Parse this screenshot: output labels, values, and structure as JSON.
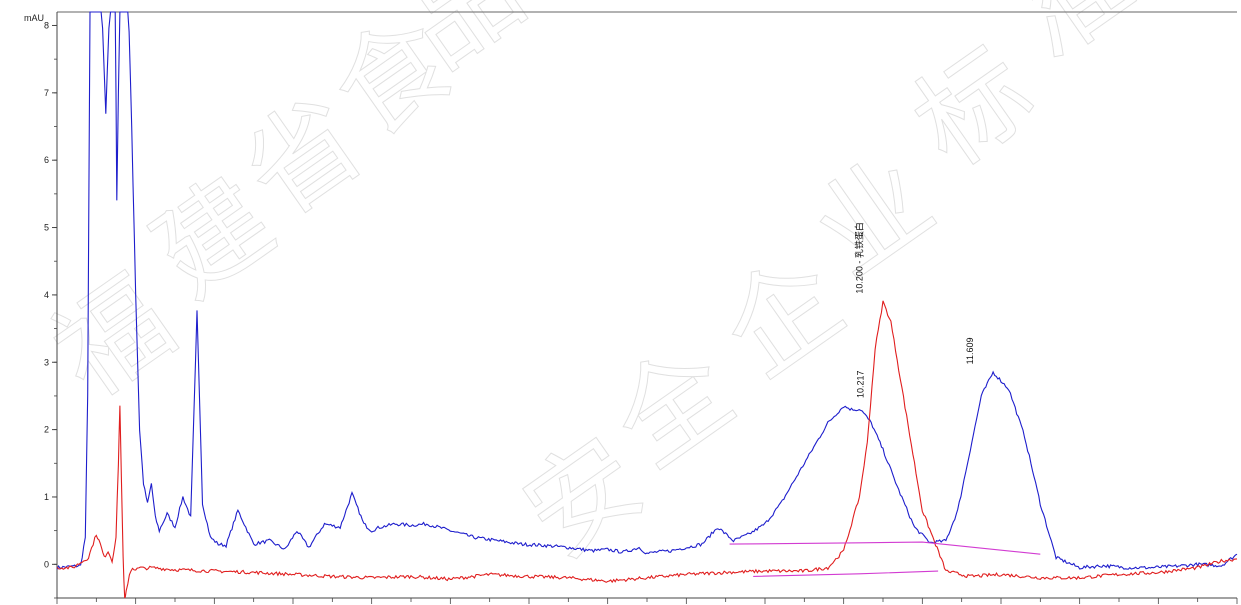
{
  "chart_data": {
    "type": "line",
    "title": "",
    "xlabel": "",
    "ylabel": "mAU",
    "y_ticks": [
      "0",
      "1",
      "2",
      "3",
      "4",
      "5",
      "6",
      "7",
      "8"
    ],
    "ylim": [
      -0.5,
      8.2
    ],
    "xlim": [
      0,
      15
    ],
    "x_tick_step": 0.5,
    "x_tick_labels_visible": false,
    "grid": false,
    "legend": "none",
    "colors": {
      "series_1": "#1e1ecc",
      "series_2": "#e01e1e",
      "baseline": "#d23cd2",
      "axis": "#333333"
    },
    "series": [
      {
        "color": "#1e1ecc",
        "x": [
          0,
          0.3,
          0.36,
          0.39,
          0.42,
          0.46,
          0.48,
          0.5,
          0.56,
          0.62,
          0.68,
          0.71,
          0.74,
          0.76,
          0.8,
          0.86,
          0.9,
          0.95,
          1.0,
          1.05,
          1.1,
          1.15,
          1.2,
          1.25,
          1.3,
          1.4,
          1.5,
          1.6,
          1.7,
          1.78,
          1.85,
          1.95,
          2.05,
          2.15,
          2.3,
          2.5,
          2.7,
          2.9,
          3.05,
          3.2,
          3.4,
          3.6,
          3.75,
          3.9,
          4.0,
          4.1,
          4.3,
          4.5,
          4.7,
          5.0,
          5.3,
          5.6,
          5.9,
          6.2,
          6.5,
          6.8,
          7.0,
          7.2,
          7.4,
          7.5,
          7.6,
          7.8,
          8.0,
          8.2,
          8.4,
          8.6,
          8.8,
          9.0,
          9.2,
          9.4,
          9.6,
          9.8,
          10.0,
          10.1,
          10.217,
          10.35,
          10.5,
          10.7,
          10.9,
          11.1,
          11.3,
          11.45,
          11.609,
          11.75,
          11.9,
          12.1,
          12.3,
          12.5,
          12.7,
          13.0,
          13.3,
          13.6,
          13.9,
          14.2,
          14.5,
          14.8,
          15.0
        ],
        "y": [
          -0.05,
          -0.02,
          0.4,
          2.5,
          8.6,
          8.6,
          8.6,
          8.6,
          8.6,
          6.7,
          8.6,
          8.6,
          8.6,
          5.4,
          8.6,
          8.6,
          8.6,
          6.5,
          4.0,
          2.0,
          1.2,
          0.9,
          1.2,
          0.7,
          0.5,
          0.75,
          0.55,
          1.0,
          0.7,
          3.75,
          0.9,
          0.4,
          0.3,
          0.28,
          0.8,
          0.3,
          0.35,
          0.22,
          0.5,
          0.25,
          0.6,
          0.55,
          1.05,
          0.6,
          0.5,
          0.55,
          0.6,
          0.58,
          0.6,
          0.5,
          0.4,
          0.35,
          0.3,
          0.28,
          0.25,
          0.2,
          0.22,
          0.18,
          0.25,
          0.16,
          0.18,
          0.2,
          0.25,
          0.3,
          0.55,
          0.35,
          0.45,
          0.6,
          0.9,
          1.3,
          1.7,
          2.1,
          2.35,
          2.3,
          2.3,
          2.1,
          1.7,
          1.1,
          0.55,
          0.32,
          0.35,
          0.8,
          1.7,
          2.5,
          2.85,
          2.6,
          1.9,
          0.9,
          0.1,
          -0.05,
          -0.02,
          -0.05,
          -0.05,
          -0.03,
          0.0,
          -0.02,
          0.15
        ]
      },
      {
        "color": "#e01e1e",
        "x": [
          0,
          0.2,
          0.4,
          0.5,
          0.55,
          0.6,
          0.65,
          0.7,
          0.75,
          0.78,
          0.8,
          0.84,
          0.86,
          0.88,
          0.92,
          0.96,
          1.0,
          1.06,
          1.1,
          1.2,
          1.5,
          2.0,
          2.5,
          3.0,
          3.5,
          4.0,
          4.5,
          5.0,
          5.5,
          6.0,
          6.5,
          7.0,
          7.5,
          8.0,
          8.5,
          9.0,
          9.5,
          9.8,
          10.0,
          10.1,
          10.2,
          10.3,
          10.4,
          10.5,
          10.6,
          10.8,
          11.0,
          11.3,
          11.6,
          12.0,
          12.5,
          13.0,
          13.5,
          14.0,
          14.5,
          14.8,
          15.0
        ],
        "y": [
          -0.05,
          -0.05,
          0.1,
          0.45,
          0.3,
          0.1,
          0.2,
          0.05,
          0.4,
          1.5,
          2.35,
          0.1,
          -0.6,
          -0.4,
          -0.15,
          -0.05,
          -0.08,
          -0.05,
          -0.06,
          -0.05,
          -0.08,
          -0.1,
          -0.12,
          -0.15,
          -0.18,
          -0.2,
          -0.18,
          -0.22,
          -0.15,
          -0.18,
          -0.2,
          -0.25,
          -0.2,
          -0.15,
          -0.12,
          -0.1,
          -0.1,
          -0.05,
          0.2,
          0.6,
          1.0,
          1.8,
          3.2,
          3.9,
          3.6,
          2.2,
          0.8,
          -0.1,
          -0.18,
          -0.15,
          -0.2,
          -0.2,
          -0.15,
          -0.12,
          -0.05,
          0.05,
          0.08
        ]
      }
    ],
    "integration_baselines": [
      {
        "x": [
          8.55,
          10.217,
          11.0,
          12.5
        ],
        "y": [
          0.3,
          0.32,
          0.33,
          0.15
        ]
      },
      {
        "x": [
          8.85,
          10.2,
          11.2
        ],
        "y": [
          -0.18,
          -0.14,
          -0.1
        ]
      }
    ],
    "annotations": [
      {
        "x": 10.2,
        "y": 3.9,
        "text": "10.200 - 乳铁蛋白"
      },
      {
        "x": 10.217,
        "y": 2.35,
        "text": "10.217"
      },
      {
        "x": 11.609,
        "y": 2.85,
        "text": "11.609"
      }
    ]
  },
  "watermark": [
    "福",
    "建",
    "省",
    "食",
    "品",
    "安",
    "全",
    "企",
    "业",
    "标",
    "准"
  ]
}
